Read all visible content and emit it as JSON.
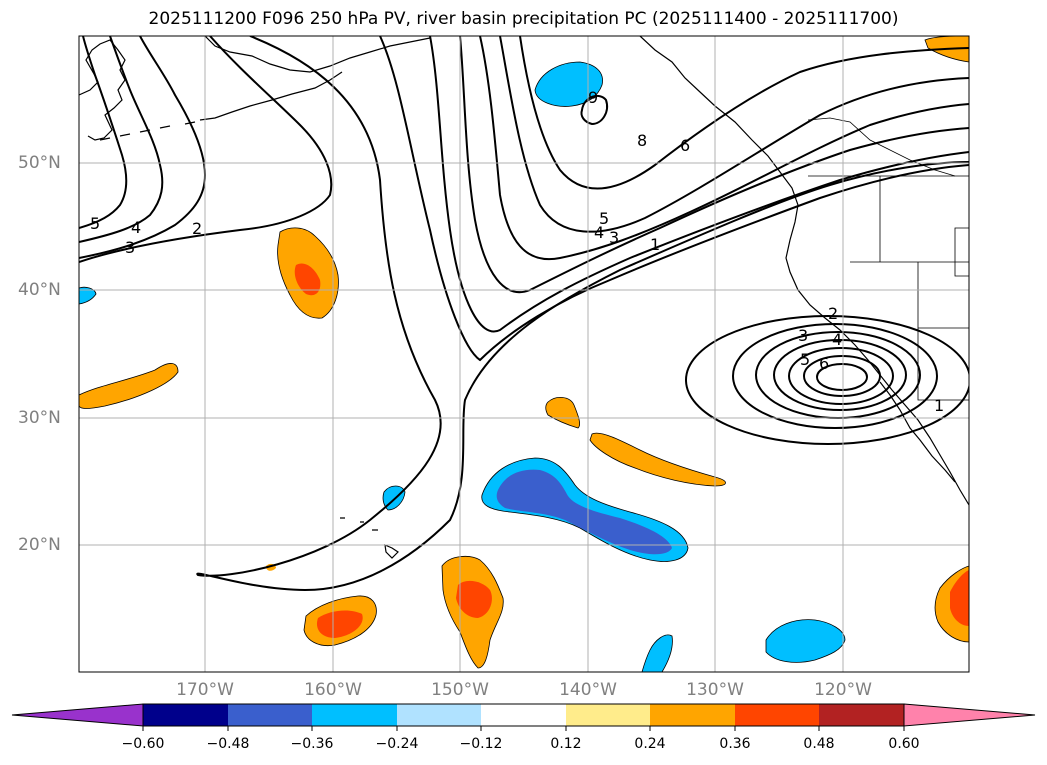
{
  "title": "2025111200 F096 250 hPa PV, river basin precipitation PC (2025111400 - 2025111700)",
  "latitude_labels": [
    "50°N",
    "40°N",
    "30°N",
    "20°N"
  ],
  "longitude_labels": [
    "170°W",
    "160°W",
    "150°W",
    "140°W",
    "130°W",
    "120°W"
  ],
  "contour_labels": [
    "5",
    "4",
    "3",
    "2",
    "9",
    "8",
    "6",
    "5",
    "4",
    "3",
    "1",
    "2",
    "3",
    "4",
    "5",
    "6",
    "1"
  ],
  "colorbar": {
    "ticks": [
      "−0.60",
      "−0.48",
      "−0.36",
      "−0.24",
      "−0.12",
      "0.12",
      "0.24",
      "0.36",
      "0.48",
      "0.60"
    ],
    "colors": [
      "#9932cc",
      "#00008b",
      "#3a5fcd",
      "#00bfff",
      "#b0e2ff",
      "#ffffff",
      "#ffec8b",
      "#ffa500",
      "#ff4500",
      "#b22222",
      "#ff82ab"
    ]
  }
}
